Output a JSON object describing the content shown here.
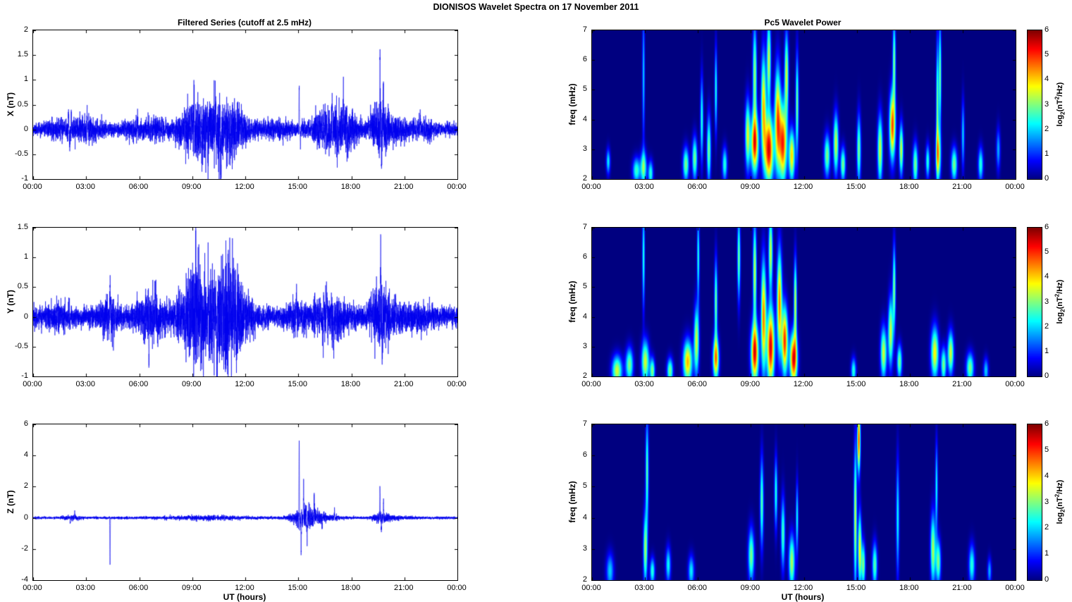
{
  "title": "DIONISOS Wavelet Spectra on 17 November  2011",
  "x_axis": {
    "label": "UT (hours)",
    "xlim": [
      0,
      24
    ],
    "hours": [
      0,
      3,
      6,
      9,
      12,
      15,
      18,
      21,
      24
    ],
    "tick_labels": [
      "00:00",
      "03:00",
      "06:00",
      "09:00",
      "12:00",
      "15:00",
      "18:00",
      "21:00",
      "00:00"
    ]
  },
  "colorbar": {
    "clim": [
      0,
      6
    ],
    "ticks": [
      0,
      1,
      2,
      3,
      4,
      5,
      6
    ],
    "label_text": "log2(nT^2/Hz)",
    "label_parts": {
      "p1": "log",
      "sub": "2",
      "p2": "(nT",
      "sup": "2",
      "p3": "/Hz)"
    }
  },
  "chart_data": [
    {
      "type": "line",
      "name": "x-filtered-series",
      "title": "Filtered Series (cutoff at 2.5 mHz)",
      "ylabel": "X (nT)",
      "ylim": [
        -1,
        2
      ],
      "yticks": [
        -1,
        -0.5,
        0,
        0.5,
        1,
        1.5,
        2
      ],
      "line_color": "#0000EE",
      "seed": 11,
      "noise_base": 0.06,
      "bursts": [
        {
          "t": 1.6,
          "w": 0.5,
          "a": 0.05
        },
        {
          "t": 3.1,
          "w": 0.7,
          "a": 0.07
        },
        {
          "t": 5.8,
          "w": 0.5,
          "a": 0.05
        },
        {
          "t": 6.9,
          "w": 0.4,
          "a": 0.06
        },
        {
          "t": 9.0,
          "w": 0.5,
          "a": 0.12
        },
        {
          "t": 10.2,
          "w": 1.1,
          "a": 0.22
        },
        {
          "t": 11.1,
          "w": 0.7,
          "a": 0.12
        },
        {
          "t": 13.8,
          "w": 0.5,
          "a": 0.05
        },
        {
          "t": 16.2,
          "w": 0.5,
          "a": 0.08
        },
        {
          "t": 17.1,
          "w": 0.7,
          "a": 0.14
        },
        {
          "t": 17.8,
          "w": 0.4,
          "a": 0.1
        },
        {
          "t": 19.65,
          "w": 0.35,
          "a": 0.22
        },
        {
          "t": 20.6,
          "w": 0.7,
          "a": 0.07
        },
        {
          "t": 22.2,
          "w": 0.5,
          "a": 0.04
        }
      ],
      "spikes": [
        {
          "t": 2.0,
          "v": 0.45
        },
        {
          "t": 2.07,
          "v": -0.5
        },
        {
          "t": 3.05,
          "v": 0.5
        },
        {
          "t": 5.9,
          "v": 0.35
        },
        {
          "t": 9.1,
          "v": 0.6
        },
        {
          "t": 9.55,
          "v": -0.62
        },
        {
          "t": 9.9,
          "v": -0.75
        },
        {
          "t": 10.3,
          "v": 0.72
        },
        {
          "t": 10.62,
          "v": -0.8
        },
        {
          "t": 15.05,
          "v": 0.9
        },
        {
          "t": 15.12,
          "v": -0.38
        },
        {
          "t": 16.5,
          "v": 0.55
        },
        {
          "t": 16.92,
          "v": 0.85
        },
        {
          "t": 17.2,
          "v": -0.6
        },
        {
          "t": 17.55,
          "v": 0.8
        },
        {
          "t": 19.62,
          "v": 1.65
        },
        {
          "t": 19.7,
          "v": -0.9
        },
        {
          "t": 19.8,
          "v": 1.05
        },
        {
          "t": 21.9,
          "v": 0.3
        }
      ]
    },
    {
      "type": "heatmap",
      "name": "x-wavelet-power",
      "title": "Pc5 Wavelet Power",
      "ylabel": "freq (mHz)",
      "ylim": [
        2,
        7
      ],
      "yticks": [
        2,
        3,
        4,
        5,
        6,
        7
      ],
      "clim": [
        0,
        6
      ],
      "blobs": [
        {
          "t": 0.9,
          "f": 2.6,
          "st": 0.08,
          "sf": 0.3,
          "a": 2.2
        },
        {
          "t": 2.5,
          "f": 2.3,
          "st": 0.15,
          "sf": 0.3,
          "a": 2.6
        },
        {
          "t": 2.9,
          "f": 5.5,
          "st": 0.05,
          "sf": 1.5,
          "a": 2.0
        },
        {
          "t": 2.9,
          "f": 2.4,
          "st": 0.12,
          "sf": 0.4,
          "a": 3.0
        },
        {
          "t": 3.3,
          "f": 2.2,
          "st": 0.1,
          "sf": 0.3,
          "a": 2.5
        },
        {
          "t": 5.3,
          "f": 2.5,
          "st": 0.12,
          "sf": 0.4,
          "a": 3.0
        },
        {
          "t": 5.8,
          "f": 2.7,
          "st": 0.1,
          "sf": 0.5,
          "a": 3.0
        },
        {
          "t": 6.2,
          "f": 4.0,
          "st": 0.06,
          "sf": 1.0,
          "a": 2.5
        },
        {
          "t": 6.6,
          "f": 3.0,
          "st": 0.08,
          "sf": 0.8,
          "a": 3.0
        },
        {
          "t": 7.0,
          "f": 5.0,
          "st": 0.05,
          "sf": 1.0,
          "a": 2.5
        },
        {
          "t": 7.5,
          "f": 2.5,
          "st": 0.1,
          "sf": 0.4,
          "a": 2.5
        },
        {
          "t": 8.8,
          "f": 3.5,
          "st": 0.1,
          "sf": 0.8,
          "a": 3.5
        },
        {
          "t": 9.2,
          "f": 3.2,
          "st": 0.15,
          "sf": 0.7,
          "a": 5.0
        },
        {
          "t": 9.2,
          "f": 5.5,
          "st": 0.08,
          "sf": 1.2,
          "a": 3.2
        },
        {
          "t": 9.7,
          "f": 4.5,
          "st": 0.1,
          "sf": 1.2,
          "a": 4.0
        },
        {
          "t": 10.0,
          "f": 3.0,
          "st": 0.18,
          "sf": 0.8,
          "a": 5.5
        },
        {
          "t": 10.0,
          "f": 6.0,
          "st": 0.08,
          "sf": 1.0,
          "a": 3.5
        },
        {
          "t": 10.5,
          "f": 4.0,
          "st": 0.12,
          "sf": 1.2,
          "a": 4.5
        },
        {
          "t": 10.8,
          "f": 3.2,
          "st": 0.15,
          "sf": 0.9,
          "a": 5.0
        },
        {
          "t": 11.0,
          "f": 5.5,
          "st": 0.08,
          "sf": 1.0,
          "a": 3.5
        },
        {
          "t": 11.3,
          "f": 2.8,
          "st": 0.12,
          "sf": 0.6,
          "a": 4.0
        },
        {
          "t": 11.6,
          "f": 4.5,
          "st": 0.06,
          "sf": 1.2,
          "a": 3.0
        },
        {
          "t": 13.3,
          "f": 2.8,
          "st": 0.12,
          "sf": 0.5,
          "a": 3.0
        },
        {
          "t": 13.8,
          "f": 3.2,
          "st": 0.1,
          "sf": 0.7,
          "a": 3.5
        },
        {
          "t": 14.2,
          "f": 2.5,
          "st": 0.1,
          "sf": 0.4,
          "a": 3.0
        },
        {
          "t": 15.1,
          "f": 3.0,
          "st": 0.08,
          "sf": 0.8,
          "a": 3.0
        },
        {
          "t": 16.3,
          "f": 3.0,
          "st": 0.1,
          "sf": 0.8,
          "a": 3.5
        },
        {
          "t": 17.0,
          "f": 3.8,
          "st": 0.12,
          "sf": 0.8,
          "a": 4.8
        },
        {
          "t": 17.1,
          "f": 6.0,
          "st": 0.06,
          "sf": 1.0,
          "a": 3.0
        },
        {
          "t": 17.5,
          "f": 3.0,
          "st": 0.08,
          "sf": 0.6,
          "a": 3.5
        },
        {
          "t": 18.3,
          "f": 2.5,
          "st": 0.1,
          "sf": 0.5,
          "a": 3.0
        },
        {
          "t": 19.0,
          "f": 2.6,
          "st": 0.08,
          "sf": 0.4,
          "a": 2.5
        },
        {
          "t": 19.55,
          "f": 4.5,
          "st": 0.05,
          "sf": 1.5,
          "a": 3.0
        },
        {
          "t": 19.7,
          "f": 5.5,
          "st": 0.05,
          "sf": 1.3,
          "a": 3.0
        },
        {
          "t": 19.6,
          "f": 2.8,
          "st": 0.1,
          "sf": 0.6,
          "a": 3.5
        },
        {
          "t": 20.5,
          "f": 2.5,
          "st": 0.12,
          "sf": 0.4,
          "a": 3.0
        },
        {
          "t": 21.0,
          "f": 3.5,
          "st": 0.06,
          "sf": 0.8,
          "a": 2.0
        },
        {
          "t": 22.0,
          "f": 2.5,
          "st": 0.1,
          "sf": 0.4,
          "a": 2.5
        },
        {
          "t": 23.0,
          "f": 3.0,
          "st": 0.08,
          "sf": 0.5,
          "a": 1.8
        }
      ]
    },
    {
      "type": "line",
      "name": "y-filtered-series",
      "ylabel": "Y (nT)",
      "ylim": [
        -1,
        1.5
      ],
      "yticks": [
        -1,
        -0.5,
        0,
        0.5,
        1,
        1.5
      ],
      "line_color": "#0000EE",
      "seed": 22,
      "noise_base": 0.08,
      "bursts": [
        {
          "t": 1.4,
          "w": 0.4,
          "a": 0.06
        },
        {
          "t": 4.3,
          "w": 0.4,
          "a": 0.1
        },
        {
          "t": 6.6,
          "w": 0.6,
          "a": 0.14
        },
        {
          "t": 9.0,
          "w": 0.5,
          "a": 0.18
        },
        {
          "t": 10.3,
          "w": 1.1,
          "a": 0.3
        },
        {
          "t": 11.3,
          "w": 0.5,
          "a": 0.18
        },
        {
          "t": 14.8,
          "w": 0.3,
          "a": 0.07
        },
        {
          "t": 16.8,
          "w": 0.8,
          "a": 0.11
        },
        {
          "t": 19.6,
          "w": 0.35,
          "a": 0.18
        },
        {
          "t": 20.4,
          "w": 0.6,
          "a": 0.08
        },
        {
          "t": 22.0,
          "w": 0.5,
          "a": 0.05
        }
      ],
      "spikes": [
        {
          "t": 4.35,
          "v": 0.65
        },
        {
          "t": 6.55,
          "v": -0.9
        },
        {
          "t": 6.9,
          "v": 0.5
        },
        {
          "t": 7.05,
          "v": -0.45
        },
        {
          "t": 9.2,
          "v": 0.8
        },
        {
          "t": 9.9,
          "v": 1.0
        },
        {
          "t": 10.4,
          "v": -1.05
        },
        {
          "t": 10.72,
          "v": 0.95
        },
        {
          "t": 11.5,
          "v": -0.88
        },
        {
          "t": 14.9,
          "v": 0.5
        },
        {
          "t": 16.6,
          "v": 0.5
        },
        {
          "t": 17.0,
          "v": -0.45
        },
        {
          "t": 19.66,
          "v": 1.1
        },
        {
          "t": 19.74,
          "v": -0.55
        },
        {
          "t": 20.5,
          "v": 0.4
        }
      ]
    },
    {
      "type": "heatmap",
      "name": "y-wavelet-power",
      "ylabel": "freq (mHz)",
      "ylim": [
        2,
        7
      ],
      "yticks": [
        2,
        3,
        4,
        5,
        6,
        7
      ],
      "clim": [
        0,
        6
      ],
      "blobs": [
        {
          "t": 1.4,
          "f": 2.2,
          "st": 0.2,
          "sf": 0.35,
          "a": 3.5
        },
        {
          "t": 2.1,
          "f": 2.4,
          "st": 0.15,
          "sf": 0.4,
          "a": 3.0
        },
        {
          "t": 2.9,
          "f": 6.0,
          "st": 0.05,
          "sf": 1.2,
          "a": 2.5
        },
        {
          "t": 3.0,
          "f": 2.5,
          "st": 0.15,
          "sf": 0.5,
          "a": 3.5
        },
        {
          "t": 3.4,
          "f": 2.2,
          "st": 0.1,
          "sf": 0.3,
          "a": 3.0
        },
        {
          "t": 4.4,
          "f": 2.2,
          "st": 0.12,
          "sf": 0.3,
          "a": 3.0
        },
        {
          "t": 5.4,
          "f": 2.5,
          "st": 0.18,
          "sf": 0.5,
          "a": 4.2
        },
        {
          "t": 5.9,
          "f": 3.2,
          "st": 0.1,
          "sf": 0.8,
          "a": 3.5
        },
        {
          "t": 6.0,
          "f": 6.0,
          "st": 0.05,
          "sf": 1.0,
          "a": 2.5
        },
        {
          "t": 7.0,
          "f": 2.6,
          "st": 0.12,
          "sf": 0.5,
          "a": 4.3
        },
        {
          "t": 7.0,
          "f": 4.5,
          "st": 0.06,
          "sf": 1.0,
          "a": 3.0
        },
        {
          "t": 8.3,
          "f": 6.0,
          "st": 0.06,
          "sf": 1.0,
          "a": 3.0
        },
        {
          "t": 9.2,
          "f": 2.8,
          "st": 0.15,
          "sf": 0.7,
          "a": 5.3
        },
        {
          "t": 9.2,
          "f": 5.5,
          "st": 0.07,
          "sf": 1.2,
          "a": 3.5
        },
        {
          "t": 9.7,
          "f": 4.0,
          "st": 0.1,
          "sf": 1.3,
          "a": 4.5
        },
        {
          "t": 10.1,
          "f": 3.0,
          "st": 0.15,
          "sf": 0.9,
          "a": 5.5
        },
        {
          "t": 10.1,
          "f": 6.2,
          "st": 0.08,
          "sf": 0.9,
          "a": 3.5
        },
        {
          "t": 10.6,
          "f": 4.5,
          "st": 0.1,
          "sf": 1.2,
          "a": 4.5
        },
        {
          "t": 10.9,
          "f": 3.2,
          "st": 0.12,
          "sf": 0.8,
          "a": 5.0
        },
        {
          "t": 11.4,
          "f": 2.6,
          "st": 0.15,
          "sf": 0.6,
          "a": 5.4
        },
        {
          "t": 11.5,
          "f": 4.5,
          "st": 0.06,
          "sf": 1.0,
          "a": 3.5
        },
        {
          "t": 14.8,
          "f": 2.2,
          "st": 0.1,
          "sf": 0.3,
          "a": 2.5
        },
        {
          "t": 16.5,
          "f": 2.8,
          "st": 0.12,
          "sf": 0.6,
          "a": 3.5
        },
        {
          "t": 16.9,
          "f": 3.5,
          "st": 0.1,
          "sf": 0.8,
          "a": 3.5
        },
        {
          "t": 17.1,
          "f": 5.0,
          "st": 0.06,
          "sf": 1.0,
          "a": 3.0
        },
        {
          "t": 17.4,
          "f": 2.5,
          "st": 0.1,
          "sf": 0.4,
          "a": 3.0
        },
        {
          "t": 19.4,
          "f": 2.8,
          "st": 0.15,
          "sf": 0.6,
          "a": 3.8
        },
        {
          "t": 19.9,
          "f": 2.4,
          "st": 0.1,
          "sf": 0.4,
          "a": 3.0
        },
        {
          "t": 20.3,
          "f": 2.8,
          "st": 0.12,
          "sf": 0.5,
          "a": 3.5
        },
        {
          "t": 21.4,
          "f": 2.3,
          "st": 0.15,
          "sf": 0.35,
          "a": 3.0
        },
        {
          "t": 22.3,
          "f": 2.2,
          "st": 0.1,
          "sf": 0.3,
          "a": 2.0
        }
      ]
    },
    {
      "type": "line",
      "name": "z-filtered-series",
      "ylabel": "Z (nT)",
      "xlabel": "UT (hours)",
      "ylim": [
        -4,
        6
      ],
      "yticks": [
        -4,
        -2,
        0,
        2,
        4,
        6
      ],
      "line_color": "#0000EE",
      "seed": 33,
      "noise_base": 0.04,
      "bursts": [
        {
          "t": 2.2,
          "w": 0.3,
          "a": 0.05
        },
        {
          "t": 9.8,
          "w": 1.4,
          "a": 0.05
        },
        {
          "t": 15.35,
          "w": 0.5,
          "a": 0.28
        },
        {
          "t": 16.2,
          "w": 0.7,
          "a": 0.1
        },
        {
          "t": 19.65,
          "w": 0.3,
          "a": 0.14
        },
        {
          "t": 20.6,
          "w": 0.5,
          "a": 0.04
        }
      ],
      "spikes": [
        {
          "t": 2.1,
          "v": -0.4
        },
        {
          "t": 2.35,
          "v": 0.35
        },
        {
          "t": 4.35,
          "v": -3.2
        },
        {
          "t": 15.05,
          "v": 5.1
        },
        {
          "t": 15.16,
          "v": -2.8
        },
        {
          "t": 15.3,
          "v": 2.5
        },
        {
          "t": 15.5,
          "v": -1.6
        },
        {
          "t": 15.9,
          "v": 1.2
        },
        {
          "t": 16.35,
          "v": -0.9
        },
        {
          "t": 17.05,
          "v": 0.6
        },
        {
          "t": 19.62,
          "v": 1.9
        },
        {
          "t": 19.7,
          "v": -1.0
        },
        {
          "t": 19.82,
          "v": 1.4
        }
      ]
    },
    {
      "type": "heatmap",
      "name": "z-wavelet-power",
      "ylabel": "freq (mHz)",
      "xlabel": "UT (hours)",
      "ylim": [
        2,
        7
      ],
      "yticks": [
        2,
        3,
        4,
        5,
        6,
        7
      ],
      "clim": [
        0,
        6
      ],
      "blobs": [
        {
          "t": 1.0,
          "f": 2.3,
          "st": 0.15,
          "sf": 0.4,
          "a": 2.0
        },
        {
          "t": 3.0,
          "f": 3.0,
          "st": 0.08,
          "sf": 0.8,
          "a": 3.2
        },
        {
          "t": 3.1,
          "f": 5.5,
          "st": 0.06,
          "sf": 1.2,
          "a": 2.8
        },
        {
          "t": 3.4,
          "f": 2.3,
          "st": 0.1,
          "sf": 0.3,
          "a": 2.5
        },
        {
          "t": 4.3,
          "f": 2.5,
          "st": 0.1,
          "sf": 0.4,
          "a": 2.3
        },
        {
          "t": 5.6,
          "f": 2.3,
          "st": 0.12,
          "sf": 0.35,
          "a": 2.2
        },
        {
          "t": 9.0,
          "f": 2.8,
          "st": 0.12,
          "sf": 0.6,
          "a": 3.0
        },
        {
          "t": 9.6,
          "f": 4.5,
          "st": 0.07,
          "sf": 1.0,
          "a": 2.8
        },
        {
          "t": 10.4,
          "f": 4.8,
          "st": 0.06,
          "sf": 0.8,
          "a": 2.5
        },
        {
          "t": 10.8,
          "f": 3.5,
          "st": 0.08,
          "sf": 0.8,
          "a": 2.7
        },
        {
          "t": 11.3,
          "f": 2.6,
          "st": 0.12,
          "sf": 0.6,
          "a": 3.3
        },
        {
          "t": 11.6,
          "f": 4.0,
          "st": 0.05,
          "sf": 0.8,
          "a": 2.3
        },
        {
          "t": 14.9,
          "f": 4.0,
          "st": 0.06,
          "sf": 1.6,
          "a": 3.5
        },
        {
          "t": 15.1,
          "f": 6.5,
          "st": 0.06,
          "sf": 0.7,
          "a": 5.0
        },
        {
          "t": 15.15,
          "f": 3.0,
          "st": 0.07,
          "sf": 0.8,
          "a": 3.8
        },
        {
          "t": 15.35,
          "f": 2.5,
          "st": 0.08,
          "sf": 0.5,
          "a": 3.0
        },
        {
          "t": 16.0,
          "f": 2.5,
          "st": 0.1,
          "sf": 0.5,
          "a": 2.8
        },
        {
          "t": 17.3,
          "f": 4.0,
          "st": 0.06,
          "sf": 1.3,
          "a": 2.3
        },
        {
          "t": 19.3,
          "f": 3.0,
          "st": 0.1,
          "sf": 0.8,
          "a": 3.3
        },
        {
          "t": 19.5,
          "f": 5.0,
          "st": 0.05,
          "sf": 1.0,
          "a": 2.3
        },
        {
          "t": 19.6,
          "f": 2.6,
          "st": 0.1,
          "sf": 0.5,
          "a": 3.0
        },
        {
          "t": 21.5,
          "f": 2.5,
          "st": 0.12,
          "sf": 0.45,
          "a": 2.5
        },
        {
          "t": 22.5,
          "f": 2.3,
          "st": 0.08,
          "sf": 0.3,
          "a": 1.8
        }
      ]
    }
  ]
}
